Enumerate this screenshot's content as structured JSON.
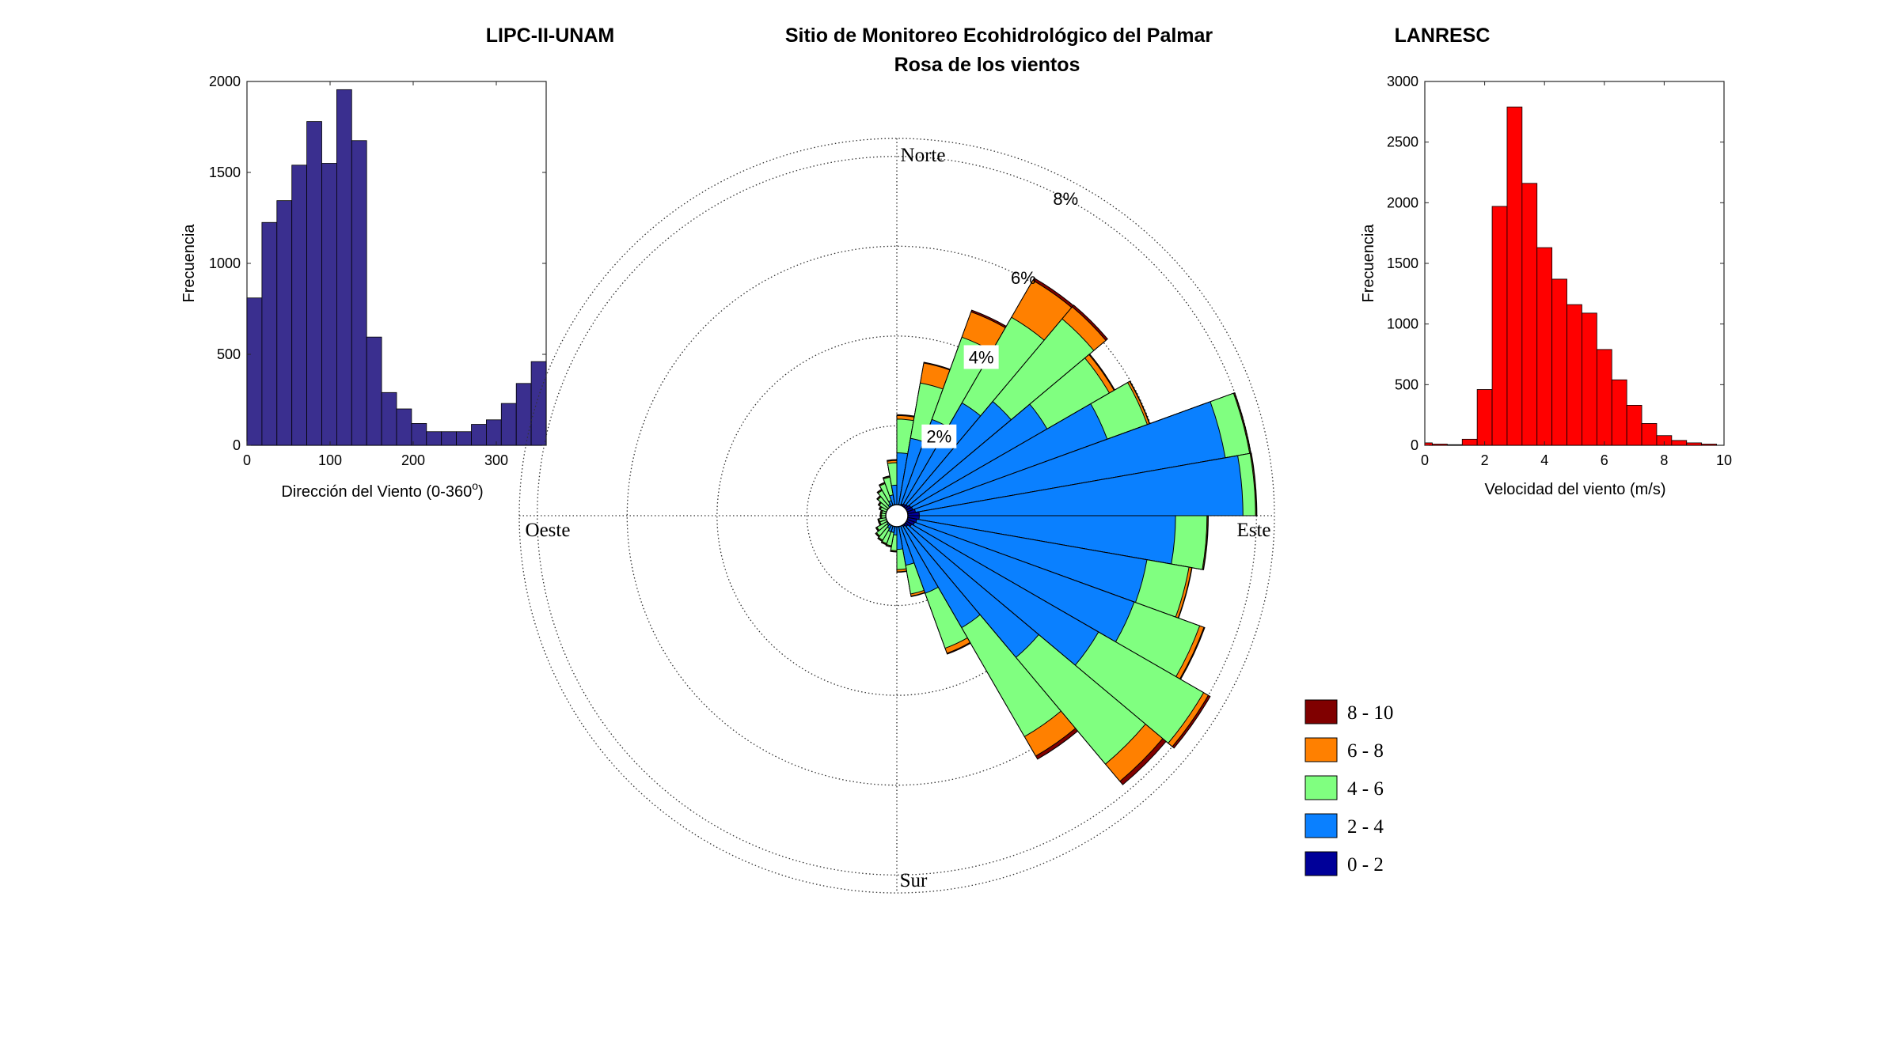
{
  "titles": {
    "left": "LIPC-II-UNAM",
    "center_line1": "Sitio de Monitoreo Ecohidrológico del Palmar",
    "center_line2": "Rosa de los vientos",
    "right": "LANRESC"
  },
  "colors": {
    "dir_hist": "#3a2f8f",
    "speed_hist": "#ff0000",
    "bins": [
      "#000099",
      "#0a80ff",
      "#80ff80",
      "#ff8000",
      "#800000"
    ]
  },
  "chart_data": [
    {
      "type": "bar",
      "subtype": "histogram",
      "xlabel": "Dirección del Viento (0-360",
      "xlabel_sup": "o",
      "xlabel_end": ")",
      "ylabel": "Frecuencia",
      "xlim": [
        0,
        360
      ],
      "ylim": [
        0,
        2000
      ],
      "xticks": [
        "0",
        "100",
        "200",
        "300"
      ],
      "yticks": [
        "0",
        "500",
        "1000",
        "1500",
        "2000"
      ],
      "bin_width": 18,
      "values": [
        810,
        1225,
        1345,
        1540,
        1780,
        1550,
        1955,
        1675,
        595,
        290,
        200,
        120,
        75,
        75,
        75,
        115,
        140,
        230,
        340,
        460
      ]
    },
    {
      "type": "bar",
      "subtype": "windrose",
      "title": "Rosa de los vientos",
      "directions": [
        "Norte",
        "Este",
        "Sur",
        "Oeste"
      ],
      "radial_labels": [
        "2%",
        "4%",
        "6%",
        "8%"
      ],
      "radial_ticks": [
        2,
        4,
        6,
        8
      ],
      "rmax": 8.4,
      "legend": [
        "8 - 10",
        "6 - 8",
        "4 - 6",
        "2 - 4",
        "0 - 2"
      ],
      "sector_width_deg": 10,
      "sectors_start_deg": [
        0,
        10,
        20,
        30,
        40,
        50,
        60,
        70,
        80,
        90,
        100,
        110,
        120,
        130,
        140,
        150,
        160,
        170,
        180,
        190,
        200,
        210,
        220,
        230,
        240,
        250,
        260,
        270,
        280,
        290,
        300,
        310,
        320,
        330,
        340,
        350
      ],
      "series": [
        {
          "name": "0 - 2",
          "values": [
            0.2,
            0.25,
            0.28,
            0.3,
            0.32,
            0.36,
            0.38,
            0.42,
            0.5,
            0.5,
            0.45,
            0.42,
            0.38,
            0.32,
            0.28,
            0.24,
            0.22,
            0.2,
            0.18,
            0.18,
            0.18,
            0.18,
            0.17,
            0.16,
            0.15,
            0.15,
            0.14,
            0.14,
            0.14,
            0.14,
            0.15,
            0.15,
            0.15,
            0.16,
            0.17,
            0.18
          ]
        },
        {
          "name": "2 - 4",
          "values": [
            1.2,
            1.5,
            2.0,
            2.6,
            3.0,
            3.5,
            4.6,
            7.0,
            7.2,
            5.7,
            5.2,
            5.2,
            4.8,
            3.8,
            2.6,
            1.6,
            0.9,
            0.55,
            0.25,
            0.2,
            0.2,
            0.15,
            0.12,
            0.1,
            0.05,
            0.05,
            0.05,
            0.05,
            0.05,
            0.05,
            0.05,
            0.1,
            0.15,
            0.2,
            0.3,
            0.5
          ]
        },
        {
          "name": "4 - 6",
          "values": [
            0.75,
            1.25,
            1.95,
            2.2,
            2.4,
            1.6,
            0.95,
            0.55,
            0.28,
            0.7,
            0.95,
            1.55,
            2.7,
            3.1,
            2.8,
            1.3,
            0.65,
            0.45,
            0.35,
            0.3,
            0.28,
            0.3,
            0.3,
            0.25,
            0.2,
            0.2,
            0.15,
            0.15,
            0.15,
            0.2,
            0.25,
            0.3,
            0.35,
            0.4,
            0.4,
            0.5
          ]
        },
        {
          "name": "6 - 8",
          "values": [
            0.08,
            0.45,
            0.6,
            0.95,
            0.35,
            0.12,
            0.05,
            0.02,
            0.02,
            0.02,
            0.06,
            0.1,
            0.12,
            0.5,
            0.5,
            0.12,
            0.05,
            0.05,
            0.02,
            0.02,
            0.02,
            0.02,
            0.02,
            0.02,
            0.02,
            0.02,
            0.02,
            0.02,
            0.02,
            0.02,
            0.02,
            0.02,
            0.02,
            0.02,
            0.02,
            0.05
          ]
        },
        {
          "name": "8 - 10",
          "values": [
            0.02,
            0.02,
            0.04,
            0.06,
            0.05,
            0.02,
            0.01,
            0.01,
            0.01,
            0.01,
            0.01,
            0.02,
            0.05,
            0.1,
            0.08,
            0.02,
            0.01,
            0.01,
            0.01,
            0.01,
            0.01,
            0.01,
            0.01,
            0.01,
            0.01,
            0.01,
            0.01,
            0.01,
            0.01,
            0.01,
            0.01,
            0.01,
            0.01,
            0.01,
            0.01,
            0.02
          ]
        }
      ]
    },
    {
      "type": "bar",
      "subtype": "histogram",
      "xlabel": "Velocidad del viento (m/s)",
      "ylabel": "Frecuencia",
      "xlim": [
        0,
        10
      ],
      "ylim": [
        0,
        3000
      ],
      "xticks": [
        "0",
        "2",
        "4",
        "6",
        "8",
        "10"
      ],
      "yticks": [
        "0",
        "500",
        "1000",
        "1500",
        "2000",
        "2500",
        "3000"
      ],
      "bin_width": 0.5,
      "values": [
        20,
        10,
        5,
        50,
        460,
        1970,
        2790,
        2160,
        1630,
        1370,
        1160,
        1090,
        790,
        540,
        330,
        180,
        80,
        40,
        20,
        10
      ]
    }
  ]
}
